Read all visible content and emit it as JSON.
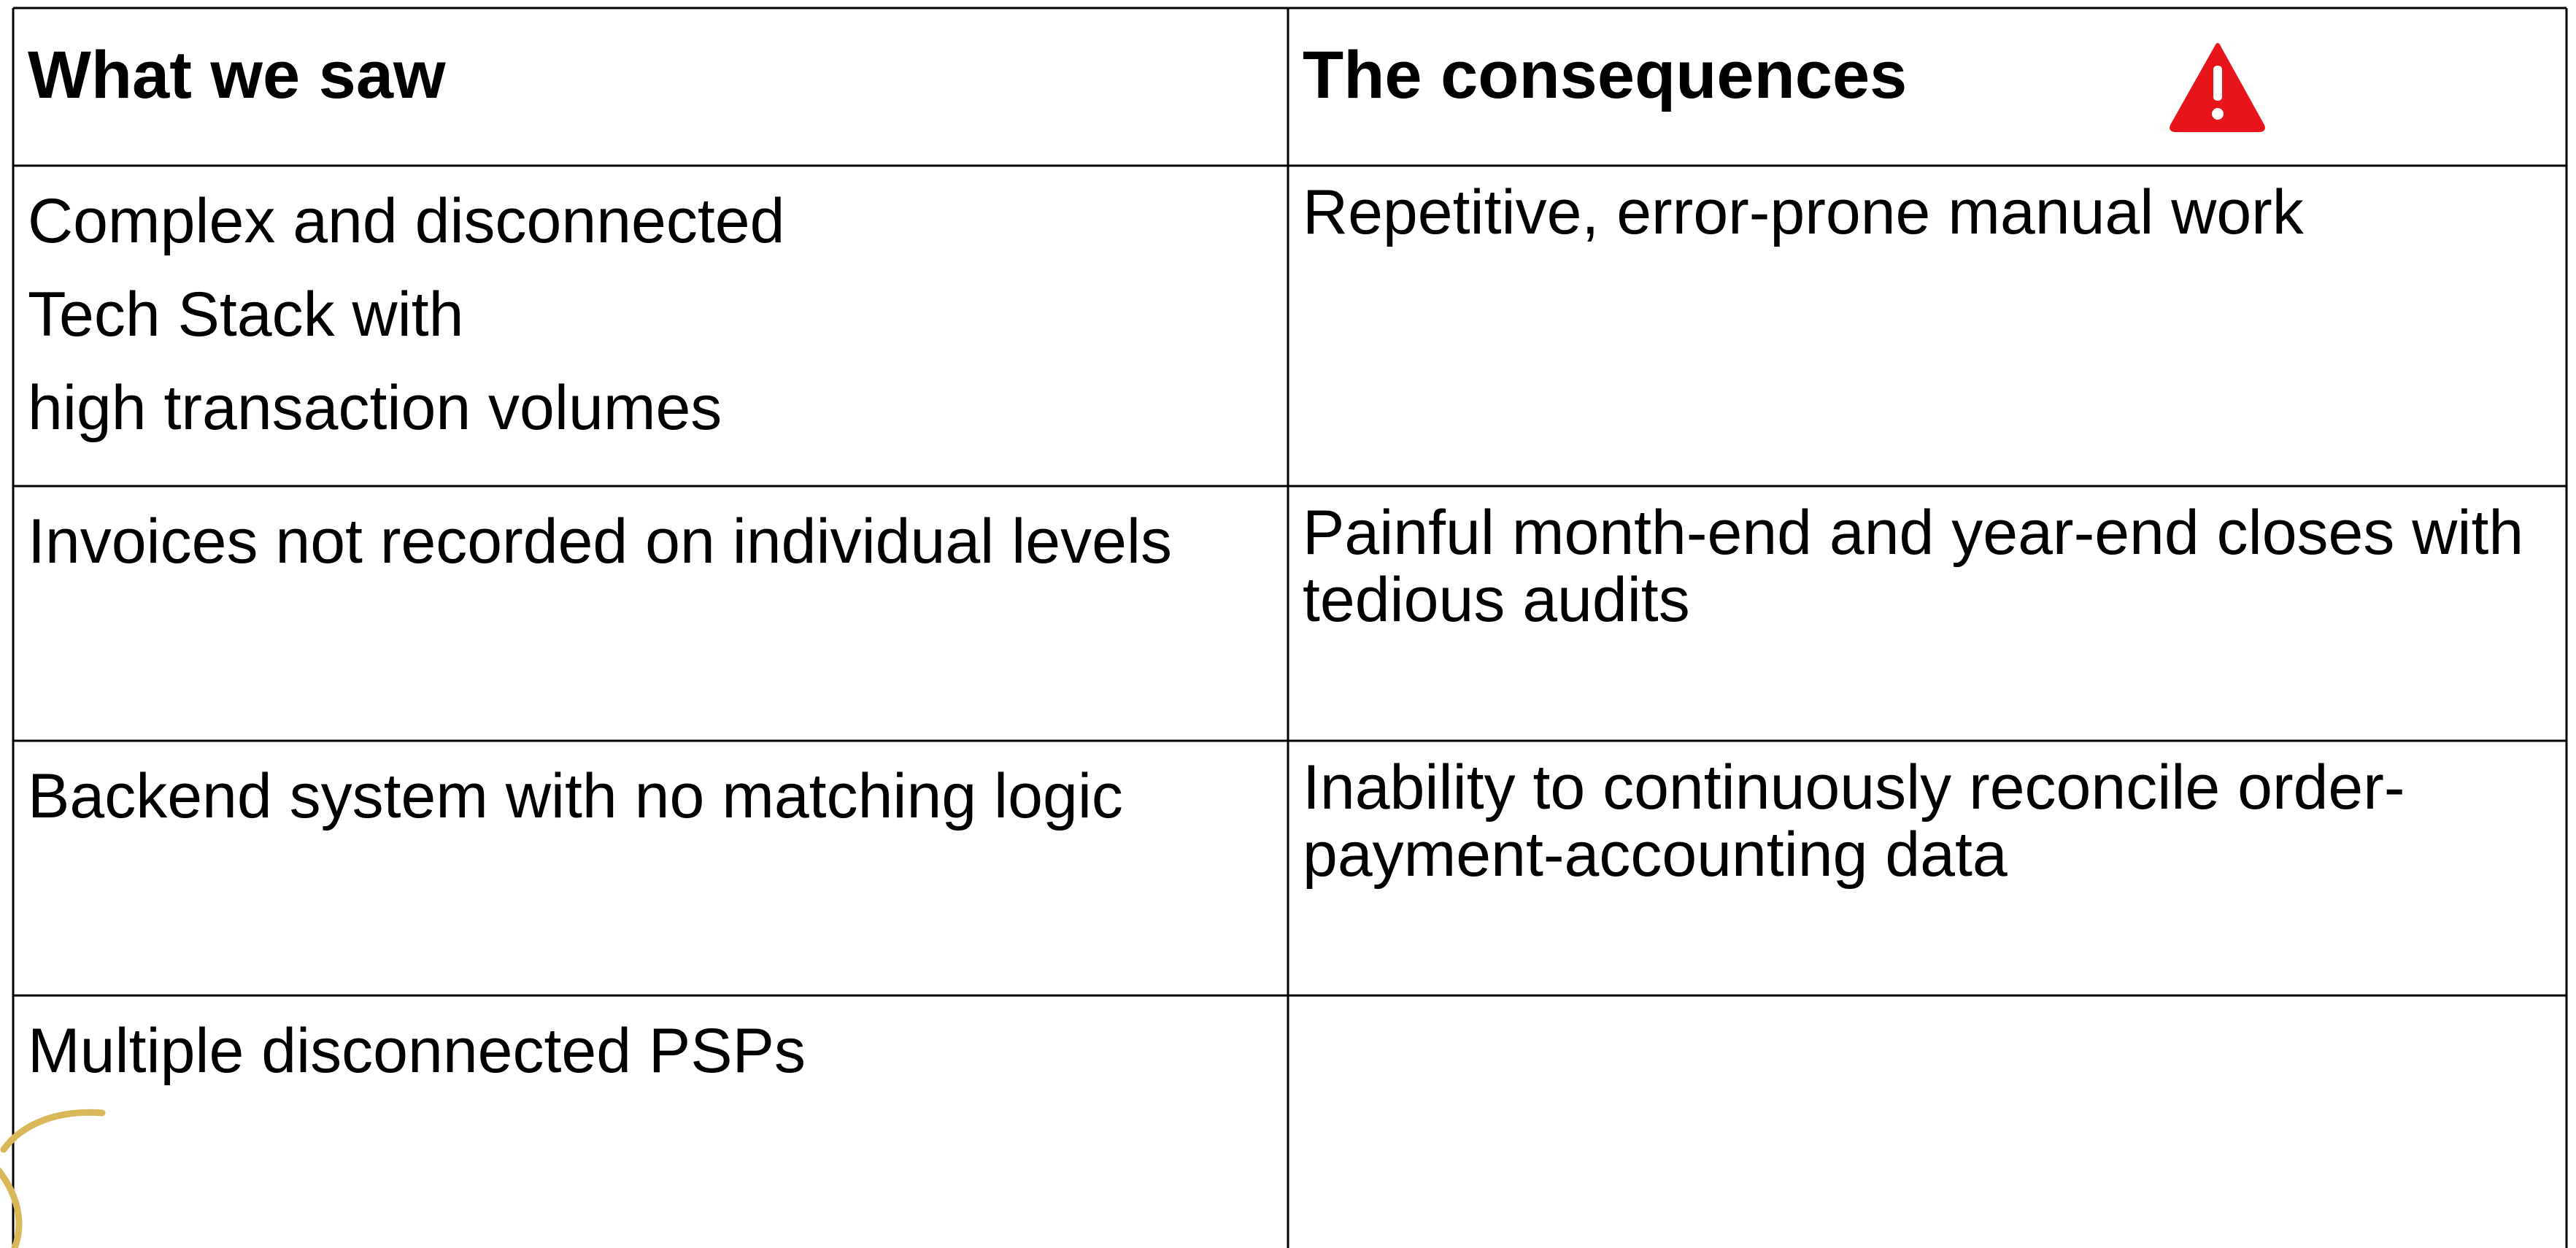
{
  "table": {
    "header": [
      "What we saw",
      "The consequences"
    ],
    "rows": [
      [
        [
          "Complex and disconnected",
          "Tech Stack with",
          "high transaction volumes"
        ],
        "Repetitive, error-prone manual work"
      ],
      [
        "Invoices not recorded on individual levels",
        "Painful month-end and year-end closes with tedious audits"
      ],
      [
        "Backend system with no matching logic",
        "Inability to continuously reconcile order-payment-accounting data"
      ],
      [
        "Multiple disconnected PSPs"
      ]
    ]
  }
}
